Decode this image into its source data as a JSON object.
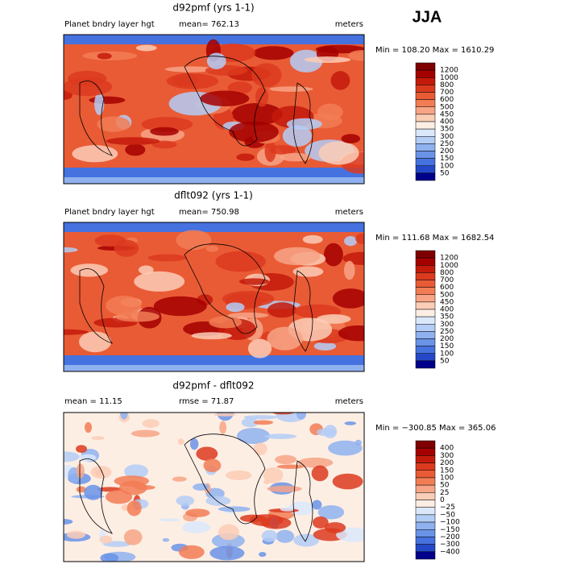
{
  "header": {
    "title": "JJA"
  },
  "panels": [
    {
      "title": "d92pmf (yrs 1-1)",
      "left": "Planet bndry layer hgt",
      "mid": "mean= 762.13",
      "units": "meters",
      "minmax": "Min = 108.20 Max = 1610.29",
      "levels": [
        "1200",
        "1000",
        "800",
        "700",
        "600",
        "500",
        "450",
        "400",
        "350",
        "300",
        "250",
        "200",
        "150",
        "100",
        "50"
      ]
    },
    {
      "title": "dflt092 (yrs 1-1)",
      "left": "Planet bndry layer hgt",
      "mid": "mean= 750.98",
      "units": "meters",
      "minmax": "Min = 111.68 Max = 1682.54",
      "levels": [
        "1200",
        "1000",
        "800",
        "700",
        "600",
        "500",
        "450",
        "400",
        "350",
        "300",
        "250",
        "200",
        "150",
        "100",
        "50"
      ]
    },
    {
      "title": "d92pmf - dflt092",
      "left": "mean =  11.15",
      "mid": "rmse =  71.87",
      "units": "meters",
      "minmax": "Min = −300.85 Max = 365.06",
      "levels": [
        "400",
        "300",
        "200",
        "150",
        "100",
        "50",
        "25",
        "0",
        "−25",
        "−50",
        "−100",
        "−150",
        "−200",
        "−300",
        "−400"
      ]
    }
  ],
  "colors": [
    "#7f0000",
    "#a50000",
    "#c41a0b",
    "#dc3a1e",
    "#e95b35",
    "#f27d55",
    "#f7a586",
    "#fbcdb6",
    "#fdeee4",
    "#dbe8fb",
    "#b4cdf6",
    "#8fb1ef",
    "#6a93e8",
    "#4572df",
    "#2448c8",
    "#00008b"
  ]
}
